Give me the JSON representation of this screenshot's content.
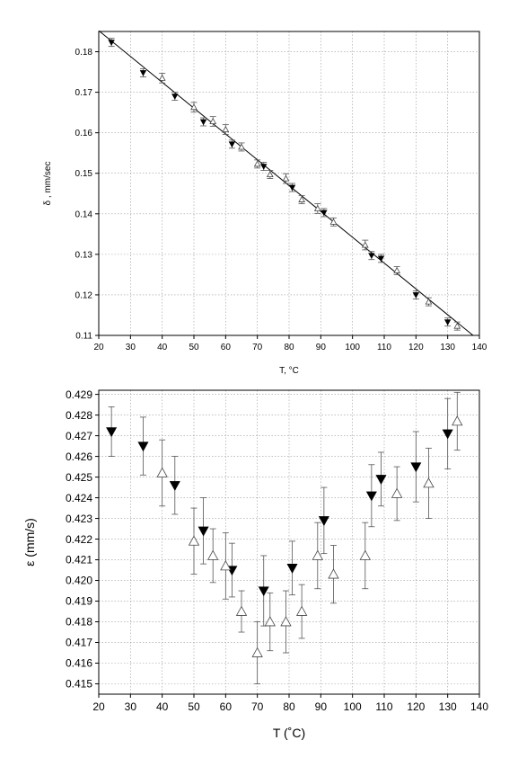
{
  "chart_data": [
    {
      "type": "scatter",
      "title": "",
      "xlabel": "T,   °C",
      "ylabel": "δ ,  mm/sec",
      "xlim": [
        20,
        140
      ],
      "ylim": [
        0.11,
        0.185
      ],
      "xticks": [
        20,
        30,
        40,
        50,
        60,
        70,
        80,
        90,
        100,
        110,
        120,
        130,
        140
      ],
      "yticks": [
        0.11,
        0.12,
        0.13,
        0.14,
        0.15,
        0.16,
        0.17,
        0.18
      ],
      "ytick_labels": [
        "0.11",
        "0.12",
        "0.13",
        "0.14",
        "0.15",
        "0.16",
        "0.17",
        "0.18"
      ],
      "grid": true,
      "fit_line": {
        "x": [
          20,
          138
        ],
        "y": [
          0.1852,
          0.11
        ]
      },
      "series": [
        {
          "marker": "filled-triangle-down",
          "x": [
            24,
            34,
            44,
            53,
            62,
            72,
            81,
            91,
            106,
            109,
            120,
            130
          ],
          "y": [
            0.1823,
            0.1748,
            0.169,
            0.1627,
            0.1572,
            0.1517,
            0.1465,
            0.1403,
            0.1297,
            0.129,
            0.12,
            0.1133
          ],
          "err": [
            0.001,
            0.001,
            0.001,
            0.001,
            0.001,
            0.001,
            0.001,
            0.001,
            0.001,
            0.001,
            0.001,
            0.001
          ]
        },
        {
          "marker": "open-triangle-up",
          "x": [
            40,
            50,
            56,
            60,
            65,
            70,
            74,
            79,
            84,
            89,
            94,
            104,
            114,
            124,
            133
          ],
          "y": [
            0.1735,
            0.1663,
            0.1628,
            0.1608,
            0.1565,
            0.1523,
            0.1497,
            0.1487,
            0.1435,
            0.1413,
            0.138,
            0.1323,
            0.126,
            0.1183,
            0.1123
          ],
          "err": [
            0.0012,
            0.0012,
            0.0012,
            0.0012,
            0.001,
            0.001,
            0.001,
            0.0012,
            0.001,
            0.0012,
            0.001,
            0.0012,
            0.001,
            0.001,
            0.001
          ]
        }
      ]
    },
    {
      "type": "scatter",
      "title": "",
      "xlabel": "T (˚C)",
      "ylabel": "ε  (mm/s)",
      "xlim": [
        20,
        140
      ],
      "ylim": [
        0.4145,
        0.4292
      ],
      "xticks": [
        20,
        30,
        40,
        50,
        60,
        70,
        80,
        90,
        100,
        110,
        120,
        130,
        140
      ],
      "yticks": [
        0.415,
        0.416,
        0.417,
        0.418,
        0.419,
        0.42,
        0.421,
        0.422,
        0.423,
        0.424,
        0.425,
        0.426,
        0.427,
        0.428,
        0.429
      ],
      "ytick_labels": [
        "0.415",
        "0.416",
        "0.417",
        "0.418",
        "0.419",
        "0.420",
        "0.421",
        "0.422",
        "0.423",
        "0.424",
        "0.425",
        "0.426",
        "0.427",
        "0.428",
        "0.429"
      ],
      "grid": true,
      "series": [
        {
          "marker": "filled-triangle-down",
          "x": [
            24,
            34,
            44,
            53,
            62,
            72,
            81,
            91,
            106,
            109,
            120,
            130
          ],
          "y": [
            0.4272,
            0.4265,
            0.4246,
            0.4224,
            0.4205,
            0.4195,
            0.4206,
            0.4229,
            0.4241,
            0.4249,
            0.4255,
            0.4271
          ],
          "err": [
            0.0012,
            0.0014,
            0.0014,
            0.0016,
            0.0013,
            0.0017,
            0.0013,
            0.0016,
            0.0015,
            0.0013,
            0.0017,
            0.0017
          ]
        },
        {
          "marker": "open-triangle-up",
          "x": [
            40,
            50,
            56,
            60,
            65,
            70,
            74,
            79,
            84,
            89,
            94,
            104,
            114,
            124,
            133
          ],
          "y": [
            0.4252,
            0.4219,
            0.4212,
            0.4207,
            0.4185,
            0.4165,
            0.418,
            0.418,
            0.4185,
            0.4212,
            0.4203,
            0.4212,
            0.4242,
            0.4247,
            0.4277
          ],
          "err": [
            0.0016,
            0.0016,
            0.0013,
            0.0016,
            0.001,
            0.0015,
            0.0014,
            0.0015,
            0.0013,
            0.0016,
            0.0014,
            0.0016,
            0.0013,
            0.0017,
            0.0014
          ]
        }
      ]
    }
  ]
}
